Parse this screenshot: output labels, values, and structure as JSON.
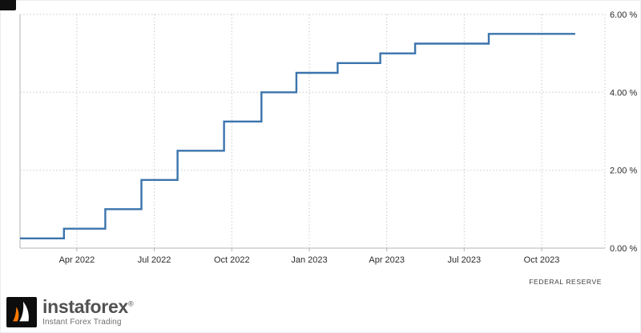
{
  "chart_data": {
    "type": "line",
    "subtype": "step-after",
    "title": "",
    "xlabel": "",
    "ylabel": "",
    "x_unit": "months_from_2022_01",
    "xlim": [
      0.8,
      23.45
    ],
    "ylim": [
      0,
      6
    ],
    "grid": true,
    "line_color": "#3b74ad",
    "x_end": 22.3,
    "series": [
      {
        "points": [
          [
            0.8,
            0.25
          ],
          [
            2.5,
            0.5
          ],
          [
            4.1,
            1.0
          ],
          [
            5.5,
            1.75
          ],
          [
            6.9,
            2.5
          ],
          [
            8.7,
            3.25
          ],
          [
            10.15,
            4.0
          ],
          [
            11.5,
            4.5
          ],
          [
            13.1,
            4.75
          ],
          [
            14.75,
            5.0
          ],
          [
            16.1,
            5.25
          ],
          [
            18.95,
            5.5
          ]
        ]
      }
    ],
    "x_ticks": [
      {
        "x": 3,
        "label": "Apr 2022"
      },
      {
        "x": 6,
        "label": "Jul 2022"
      },
      {
        "x": 9,
        "label": "Oct 2022"
      },
      {
        "x": 12,
        "label": "Jan 2023"
      },
      {
        "x": 15,
        "label": "Apr 2023"
      },
      {
        "x": 18,
        "label": "Jul 2023"
      },
      {
        "x": 21,
        "label": "Oct 2023"
      }
    ],
    "y_ticks": [
      {
        "v": 0,
        "label": "0.00 %"
      },
      {
        "v": 2,
        "label": "2.00 %"
      },
      {
        "v": 4,
        "label": "4.00 %"
      },
      {
        "v": 6,
        "label": "6.00 %"
      }
    ],
    "source": "FEDERAL RESERVE"
  },
  "watermark": {
    "brand": "instaforex",
    "registered": "®",
    "tagline": "Instant Forex Trading"
  },
  "colors": {
    "logo_orange": "#ff7a00",
    "logo_black": "#0d0d0d"
  }
}
